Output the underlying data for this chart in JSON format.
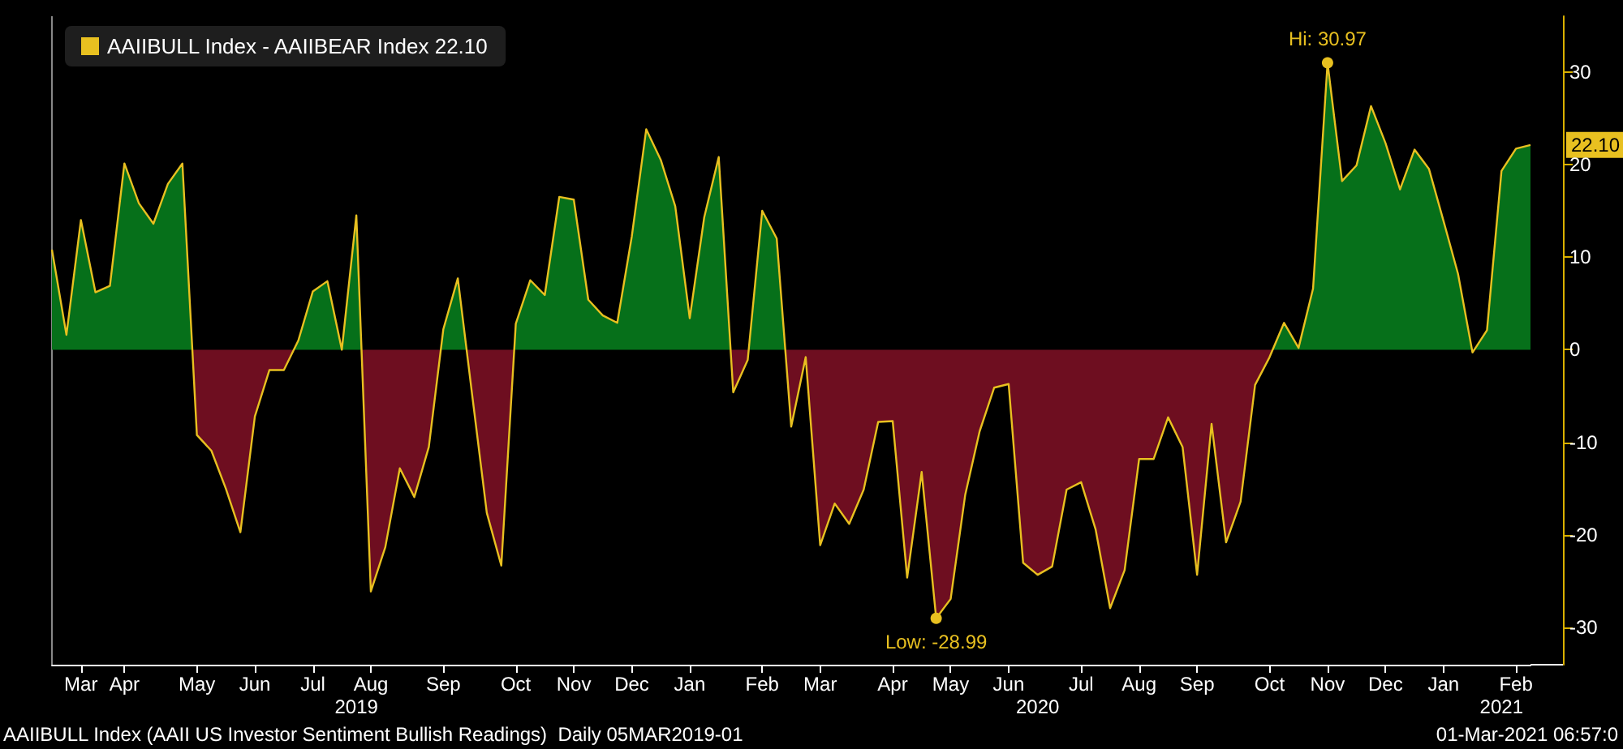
{
  "chart_data": {
    "type": "area",
    "categories": [
      null,
      null,
      "Mar",
      null,
      null,
      "Apr",
      null,
      null,
      null,
      null,
      "May",
      null,
      null,
      null,
      "Jun",
      null,
      null,
      null,
      "Jul",
      null,
      null,
      null,
      "Aug",
      null,
      null,
      null,
      null,
      "Sep",
      null,
      null,
      null,
      null,
      "Oct",
      null,
      null,
      null,
      "Nov",
      null,
      null,
      null,
      "Dec",
      null,
      null,
      null,
      "Jan",
      null,
      null,
      null,
      null,
      "Feb",
      null,
      null,
      null,
      "Mar",
      null,
      null,
      null,
      null,
      "Apr",
      null,
      null,
      null,
      "May",
      null,
      null,
      null,
      "Jun",
      null,
      null,
      null,
      null,
      "Jul",
      null,
      null,
      null,
      "Aug",
      null,
      null,
      null,
      "Sep",
      null,
      null,
      null,
      null,
      "Oct",
      null,
      null,
      null,
      "Nov",
      null,
      null,
      null,
      "Dec",
      null,
      null,
      null,
      "Jan",
      null,
      null,
      null,
      null,
      "Feb",
      null
    ],
    "series": [
      {
        "name": "AAIIBULL Index - AAIIBEAR Index 22.10",
        "color": "#e8c020",
        "values": [
          10.8,
          1.6,
          14.0,
          6.2,
          6.9,
          20.1,
          15.8,
          13.6,
          17.9,
          20.1,
          -9.2,
          -10.9,
          -15.0,
          -19.7,
          -7.2,
          -2.2,
          -2.2,
          1.0,
          6.3,
          7.4,
          0,
          14.5,
          -26.1,
          -21.3,
          -12.8,
          -15.9,
          -10.5,
          2.2,
          7.7,
          -5.0,
          -17.6,
          -23.3,
          2.8,
          7.5,
          5.9,
          16.5,
          16.2,
          5.4,
          3.7,
          2.9,
          12.2,
          23.8,
          20.5,
          15.5,
          3.4,
          14.3,
          20.8,
          -4.6,
          -1.1,
          15.0,
          12.0,
          -8.3,
          -0.8,
          -21.1,
          -16.6,
          -18.8,
          -15.1,
          -7.8,
          -7.7,
          -24.6,
          -13.2,
          -28.99,
          -26.9,
          -15.7,
          -8.8,
          -4.1,
          -3.7,
          -23.0,
          -24.3,
          -23.4,
          -15.1,
          -14.3,
          -19.4,
          -27.9,
          -23.8,
          -11.8,
          -11.8,
          -7.3,
          -10.5,
          -24.3,
          -8.0,
          -20.8,
          -16.4,
          -3.8,
          -0.8,
          2.9,
          0.2,
          6.6,
          30.97,
          18.2,
          19.9,
          26.3,
          22.3,
          17.3,
          21.6,
          19.5,
          13.9,
          8.2,
          -0.3,
          2.1,
          19.3,
          21.7,
          22.1
        ],
        "colors": [
          "#06701a",
          "#06701a",
          "#06701a",
          "#06701a",
          "#06701a",
          "#06701a",
          "#06701a",
          "#06701a",
          "#06701a",
          "#06701a",
          "#6e0e20",
          "#6e0e20",
          "#6e0e20",
          "#6e0e20",
          "#6e0e20",
          "#6e0e20",
          "#6e0e20",
          "#06701a",
          "#06701a",
          "#06701a",
          "#06701a",
          "#06701a",
          "#6e0e20",
          "#6e0e20",
          "#6e0e20",
          "#6e0e20",
          "#6e0e20",
          "#06701a",
          "#06701a",
          "#6e0e20",
          "#6e0e20",
          "#6e0e20",
          "#06701a",
          "#06701a",
          "#06701a",
          "#06701a",
          "#06701a",
          "#06701a",
          "#06701a",
          "#06701a",
          "#06701a",
          "#06701a",
          "#06701a",
          "#06701a",
          "#06701a",
          "#06701a",
          "#06701a",
          "#6e0e20",
          "#6e0e20",
          "#06701a",
          "#06701a",
          "#6e0e20",
          "#6e0e20",
          "#6e0e20",
          "#6e0e20",
          "#6e0e20",
          "#6e0e20",
          "#6e0e20",
          "#6e0e20",
          "#6e0e20",
          "#6e0e20",
          "#6e0e20",
          "#6e0e20",
          "#6e0e20",
          "#6e0e20",
          "#6e0e20",
          "#6e0e20",
          "#6e0e20",
          "#6e0e20",
          "#6e0e20",
          "#6e0e20",
          "#6e0e20",
          "#6e0e20",
          "#6e0e20",
          "#6e0e20",
          "#6e0e20",
          "#6e0e20",
          "#6e0e20",
          "#6e0e20",
          "#6e0e20",
          "#6e0e20",
          "#6e0e20",
          "#6e0e20",
          "#6e0e20",
          "#6e0e20",
          "#06701a",
          "#06701a",
          "#06701a",
          "#06701a",
          "#06701a",
          "#06701a",
          "#06701a",
          "#06701a",
          "#06701a",
          "#06701a",
          "#06701a",
          "#06701a",
          "#06701a",
          "#6e0e20",
          "#06701a",
          "#06701a",
          "#06701a",
          "#06701a"
        ]
      }
    ],
    "ylim": [
      -34,
      36
    ],
    "yticks": [
      -30,
      -20,
      -10,
      0,
      10,
      20,
      30
    ],
    "grid": false,
    "legend": "top left",
    "annotations": [
      "2019",
      "2020",
      "2021",
      {
        "text": "Hi: 30.97",
        "y": 30.97
      },
      {
        "text": "Low: -28.99",
        "y": -28.99
      },
      "22.10",
      "AAIIBULL Index (AAII US Investor Sentiment Bullish Readings)  Daily 05MAR2019-01",
      "01-Mar-2021 06:57:0"
    ]
  }
}
